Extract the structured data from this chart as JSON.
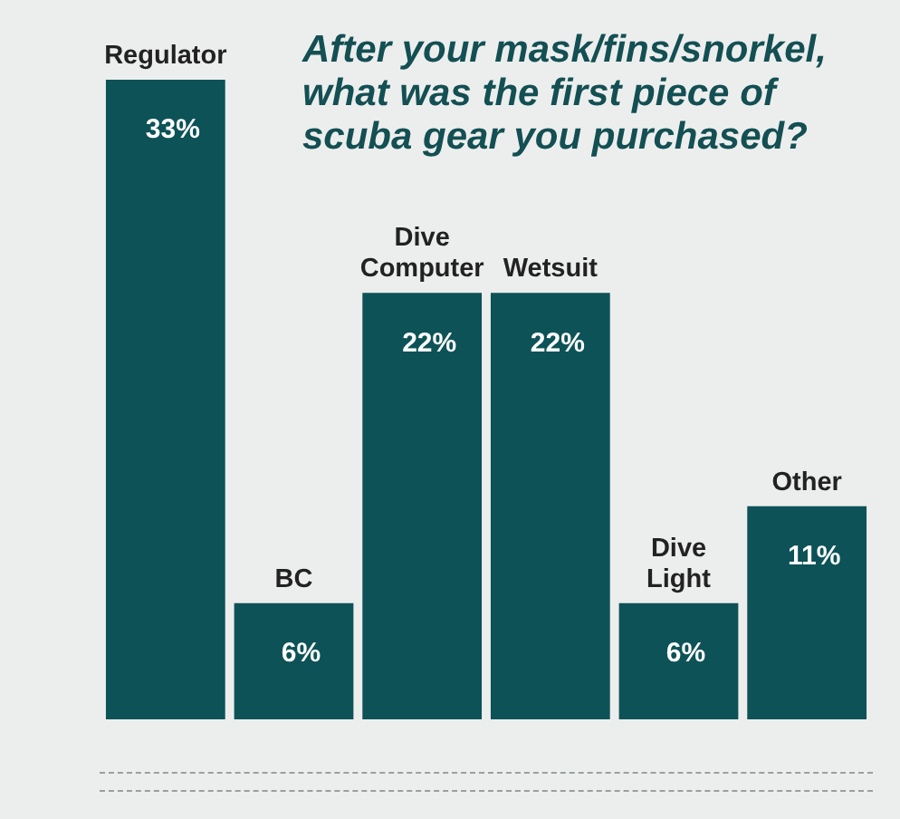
{
  "chart_data": {
    "type": "bar",
    "title": "After your mask/fins/snorkel, what was the first piece of scuba gear you purchased?",
    "categories": [
      "Regulator",
      "BC",
      "Dive Computer",
      "Wetsuit",
      "Dive Light",
      "Other"
    ],
    "values": [
      33,
      6,
      22,
      22,
      6,
      11
    ],
    "value_labels": [
      "33%",
      "6%",
      "22%",
      "22%",
      "6%",
      "11%"
    ],
    "color": "#0d5257",
    "tick_labels": "x"
  }
}
